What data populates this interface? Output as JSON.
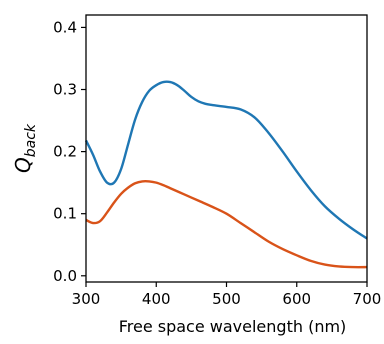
{
  "chart_data": {
    "type": "line",
    "title": "",
    "xlabel": "Free space wavelength (nm)",
    "ylabel": {
      "main": "Q",
      "subscript": "back"
    },
    "xlim": [
      300,
      700
    ],
    "ylim": [
      -0.01,
      0.42
    ],
    "xticks": [
      300,
      400,
      500,
      600,
      700
    ],
    "xtick_labels": [
      "300",
      "400",
      "500",
      "600",
      "700"
    ],
    "yticks": [
      0.0,
      0.1,
      0.2,
      0.3,
      0.4
    ],
    "ytick_labels": [
      "0.0",
      "0.1",
      "0.2",
      "0.3",
      "0.4"
    ],
    "grid": false,
    "legend": "none",
    "series": [
      {
        "color": "#1f77b4",
        "x": [
          300,
          310,
          320,
          330,
          340,
          350,
          360,
          370,
          380,
          390,
          400,
          410,
          420,
          430,
          440,
          450,
          460,
          470,
          480,
          500,
          520,
          540,
          560,
          580,
          600,
          620,
          640,
          660,
          680,
          700
        ],
        "y": [
          0.218,
          0.195,
          0.168,
          0.15,
          0.15,
          0.172,
          0.212,
          0.252,
          0.28,
          0.298,
          0.307,
          0.312,
          0.312,
          0.307,
          0.298,
          0.288,
          0.281,
          0.277,
          0.275,
          0.272,
          0.268,
          0.255,
          0.23,
          0.2,
          0.168,
          0.138,
          0.112,
          0.092,
          0.075,
          0.06
        ]
      },
      {
        "color": "#d95319",
        "x": [
          300,
          310,
          320,
          330,
          340,
          350,
          360,
          370,
          380,
          390,
          400,
          410,
          420,
          440,
          460,
          480,
          500,
          520,
          540,
          560,
          580,
          600,
          620,
          640,
          660,
          680,
          700
        ],
        "y": [
          0.09,
          0.085,
          0.088,
          0.102,
          0.118,
          0.132,
          0.142,
          0.149,
          0.152,
          0.152,
          0.15,
          0.146,
          0.141,
          0.131,
          0.121,
          0.111,
          0.1,
          0.085,
          0.07,
          0.055,
          0.043,
          0.033,
          0.024,
          0.018,
          0.015,
          0.014,
          0.014
        ]
      }
    ]
  }
}
